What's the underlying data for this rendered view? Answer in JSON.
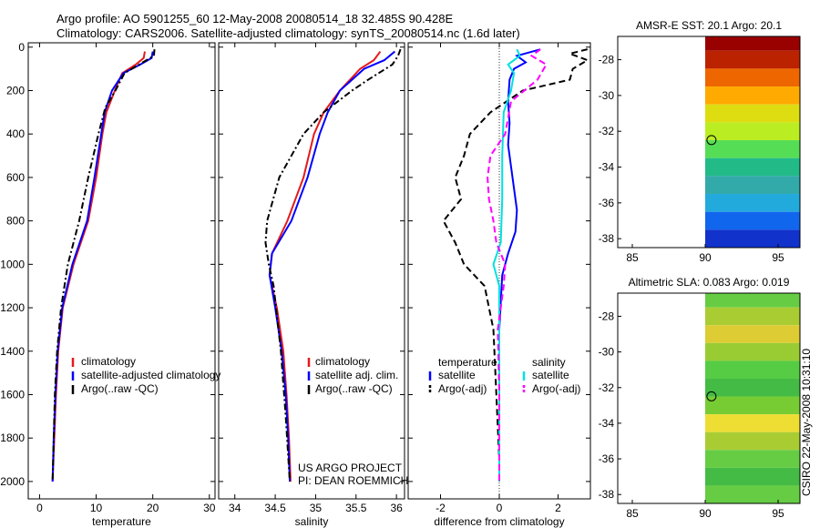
{
  "header": {
    "line1": "Argo profile: AO 5901255_60 12-May-2008 20080514_18 32.485S 90.428E",
    "line2": "Climatology: CARS2006. Satellite-adjusted climatology: synTS_20080514.nc (1.6d later)"
  },
  "credits": {
    "line1": "US ARGO PROJECT",
    "line2": "PI: DEAN ROEMMICH"
  },
  "stamp": "CSIRO 22-May-2008 10:31:10",
  "colors": {
    "red": "#e41a1c",
    "blue": "#0000ff",
    "black": "#000000",
    "cyan": "#00e0e0",
    "magenta": "#ff00ff"
  },
  "chart_data": [
    {
      "type": "line",
      "id": "temperature",
      "xlabel": "temperature",
      "ylabel": "",
      "xlim": [
        -2,
        31
      ],
      "ylim": [
        2080,
        -20
      ],
      "x_ticks": [
        0,
        10,
        20,
        30
      ],
      "y_ticks": [
        0,
        200,
        400,
        600,
        800,
        1000,
        1200,
        1400,
        1600,
        1800,
        2000
      ],
      "legend": [
        "climatology",
        "satellite-adjusted climatology",
        "Argo(..raw -QC)"
      ],
      "series": [
        {
          "name": "climatology",
          "color": "red",
          "dash": "",
          "depth": [
            20,
            50,
            80,
            120,
            200,
            300,
            400,
            600,
            800,
            1000,
            1200,
            1400,
            1600,
            1800,
            2000
          ],
          "values": [
            18.6,
            18.4,
            17.0,
            14.6,
            13.3,
            11.8,
            11.1,
            10.0,
            8.6,
            6.0,
            4.1,
            3.3,
            2.9,
            2.6,
            2.3
          ]
        },
        {
          "name": "satellite-adjusted climatology",
          "color": "blue",
          "dash": "",
          "depth": [
            20,
            50,
            80,
            120,
            200,
            300,
            400,
            600,
            800,
            1000,
            1200,
            1400,
            1600,
            1800,
            2000
          ],
          "values": [
            20.0,
            19.8,
            17.8,
            14.8,
            12.8,
            11.5,
            10.9,
            9.7,
            8.4,
            5.8,
            4.0,
            3.2,
            2.8,
            2.5,
            2.3
          ]
        },
        {
          "name": "Argo(..raw -QC)",
          "color": "black",
          "dash": "7,3,2,3",
          "depth": [
            10,
            40,
            80,
            120,
            200,
            280,
            400,
            600,
            800,
            1000,
            1200,
            1400,
            1600,
            1800,
            2000
          ],
          "values": [
            20.3,
            20.2,
            17.6,
            15.0,
            13.4,
            11.6,
            10.4,
            8.6,
            7.0,
            5.0,
            3.8,
            3.1,
            2.7,
            2.5,
            2.3
          ]
        }
      ]
    },
    {
      "type": "line",
      "id": "salinity",
      "xlabel": "salinity",
      "ylabel": "",
      "xlim": [
        33.8,
        36.1
      ],
      "ylim": [
        2080,
        -20
      ],
      "x_ticks": [
        34,
        34.5,
        35,
        35.5,
        36
      ],
      "legend": [
        "climatology",
        "satellite adj. clim.",
        "Argo(..raw -QC)"
      ],
      "series": [
        {
          "name": "climatology",
          "color": "red",
          "dash": "",
          "depth": [
            20,
            60,
            100,
            200,
            300,
            400,
            600,
            800,
            950,
            1050,
            1200,
            1400,
            1600,
            1800,
            2000
          ],
          "values": [
            35.8,
            35.72,
            35.55,
            35.3,
            35.1,
            34.98,
            34.85,
            34.65,
            34.46,
            34.43,
            34.52,
            34.6,
            34.64,
            34.67,
            34.69
          ]
        },
        {
          "name": "satellite adj. clim.",
          "color": "blue",
          "dash": "",
          "depth": [
            20,
            60,
            100,
            200,
            300,
            400,
            600,
            800,
            950,
            1050,
            1200,
            1400,
            1600,
            1800,
            2000
          ],
          "values": [
            35.98,
            35.85,
            35.6,
            35.3,
            35.15,
            35.05,
            34.9,
            34.7,
            34.46,
            34.43,
            34.5,
            34.58,
            34.63,
            34.66,
            34.68
          ]
        },
        {
          "name": "Argo(..raw -QC)",
          "color": "black",
          "dash": "7,3,2,3",
          "depth": [
            10,
            40,
            80,
            150,
            200,
            300,
            400,
            600,
            800,
            900,
            1000,
            1100,
            1400,
            1700,
            2000
          ],
          "values": [
            36.05,
            36.02,
            35.95,
            35.65,
            35.45,
            35.1,
            34.85,
            34.55,
            34.4,
            34.38,
            34.42,
            34.48,
            34.57,
            34.63,
            34.68
          ]
        }
      ]
    },
    {
      "type": "line",
      "id": "difference",
      "xlabel": "difference from climatology",
      "ylabel": "",
      "xlim": [
        -3.1,
        3.1
      ],
      "ylim": [
        2080,
        -20
      ],
      "x_ticks": [
        -2,
        0,
        2
      ],
      "legend_temperature_header": "temperature",
      "legend_salinity_header": "salinity",
      "legend": [
        "satellite",
        "Argo(-adj)",
        "satellite",
        "Argo(-adj)"
      ],
      "series": [
        {
          "name": "temperature satellite",
          "color": "blue",
          "dash": "",
          "depth": [
            10,
            40,
            70,
            100,
            150,
            250,
            350,
            450,
            550,
            650,
            750,
            850,
            950,
            1050,
            1300,
            1600,
            1900,
            2000
          ],
          "values": [
            1.4,
            0.6,
            0.9,
            0.5,
            0.35,
            0.3,
            0.35,
            0.3,
            0.4,
            0.5,
            0.6,
            0.55,
            0.3,
            0.1,
            0.0,
            0.0,
            0.0,
            0.0
          ]
        },
        {
          "name": "temperature Argo(-adj)",
          "color": "black",
          "dash": "7,4",
          "depth": [
            10,
            30,
            60,
            100,
            150,
            200,
            300,
            400,
            500,
            600,
            700,
            800,
            900,
            1000,
            1100,
            1300,
            1600,
            1900,
            2000
          ],
          "values": [
            3.0,
            2.4,
            3.0,
            2.5,
            2.4,
            0.8,
            -0.3,
            -1.0,
            -1.2,
            -1.5,
            -1.3,
            -1.9,
            -1.5,
            -1.2,
            -0.5,
            -0.2,
            -0.1,
            0.0,
            0.0
          ]
        },
        {
          "name": "salinity satellite",
          "color": "cyan",
          "dash": "",
          "depth": [
            10,
            40,
            80,
            120,
            200,
            300,
            500,
            700,
            900,
            1000,
            1100,
            1300,
            1600,
            1900,
            2000
          ],
          "values": [
            0.6,
            0.7,
            0.3,
            0.5,
            0.4,
            0.15,
            0.1,
            0.1,
            0.05,
            -0.2,
            0.0,
            0.0,
            0.0,
            0.0,
            0.0
          ]
        },
        {
          "name": "salinity Argo(-adj)",
          "color": "magenta",
          "dash": "7,4",
          "depth": [
            10,
            40,
            80,
            150,
            250,
            400,
            500,
            600,
            700,
            800,
            900,
            1000,
            1100,
            1300,
            1600,
            1900,
            2000
          ],
          "values": [
            1.4,
            1.1,
            1.6,
            1.3,
            0.4,
            0.2,
            -0.3,
            -0.4,
            -0.35,
            -0.2,
            -0.1,
            0.2,
            0.15,
            -0.05,
            0.0,
            0.0,
            0.0
          ]
        }
      ]
    },
    {
      "type": "heatmap",
      "id": "sst_map",
      "title": "AMSR-E SST: 20.1 Argo: 20.1",
      "xlim": [
        84,
        96.5
      ],
      "ylim": [
        -38.5,
        -26.7
      ],
      "x_ticks": [
        85,
        90,
        95
      ],
      "y_ticks": [
        -28,
        -30,
        -32,
        -34,
        -36,
        -38
      ],
      "data_xlim": [
        90,
        96.5
      ],
      "marker": {
        "lon": 90.43,
        "lat": -32.49
      },
      "bands": [
        {
          "lat": -27.0,
          "color": "#990000"
        },
        {
          "lat": -28.0,
          "color": "#bb2200"
        },
        {
          "lat": -29.0,
          "color": "#ee6600"
        },
        {
          "lat": -30.0,
          "color": "#ffaa00"
        },
        {
          "lat": -31.0,
          "color": "#dddd11"
        },
        {
          "lat": -32.0,
          "color": "#bbee22"
        },
        {
          "lat": -33.0,
          "color": "#55dd55"
        },
        {
          "lat": -34.0,
          "color": "#22bb88"
        },
        {
          "lat": -35.0,
          "color": "#33aaaa"
        },
        {
          "lat": -36.0,
          "color": "#22aadd"
        },
        {
          "lat": -37.0,
          "color": "#1166ee"
        },
        {
          "lat": -38.0,
          "color": "#1133cc"
        }
      ]
    },
    {
      "type": "heatmap",
      "id": "sla_map",
      "title": "Altimetric SLA: 0.083 Argo: 0.019",
      "xlim": [
        84,
        96.5
      ],
      "ylim": [
        -38.5,
        -26.7
      ],
      "x_ticks": [
        85,
        90,
        95
      ],
      "y_ticks": [
        -28,
        -30,
        -32,
        -34,
        -36,
        -38
      ],
      "data_xlim": [
        90,
        96.5
      ],
      "marker": {
        "lon": 90.43,
        "lat": -32.49
      },
      "bands": [
        {
          "lat": -27.0,
          "color": "#66cc44"
        },
        {
          "lat": -28.0,
          "color": "#aacc33"
        },
        {
          "lat": -29.0,
          "color": "#ddcc33"
        },
        {
          "lat": -30.0,
          "color": "#99cc33"
        },
        {
          "lat": -31.0,
          "color": "#55cc44"
        },
        {
          "lat": -32.0,
          "color": "#44bb44"
        },
        {
          "lat": -33.0,
          "color": "#77cc33"
        },
        {
          "lat": -34.0,
          "color": "#eedd33"
        },
        {
          "lat": -35.0,
          "color": "#aacc33"
        },
        {
          "lat": -36.0,
          "color": "#66cc44"
        },
        {
          "lat": -37.0,
          "color": "#44bb44"
        },
        {
          "lat": -38.0,
          "color": "#66cc44"
        }
      ]
    }
  ]
}
